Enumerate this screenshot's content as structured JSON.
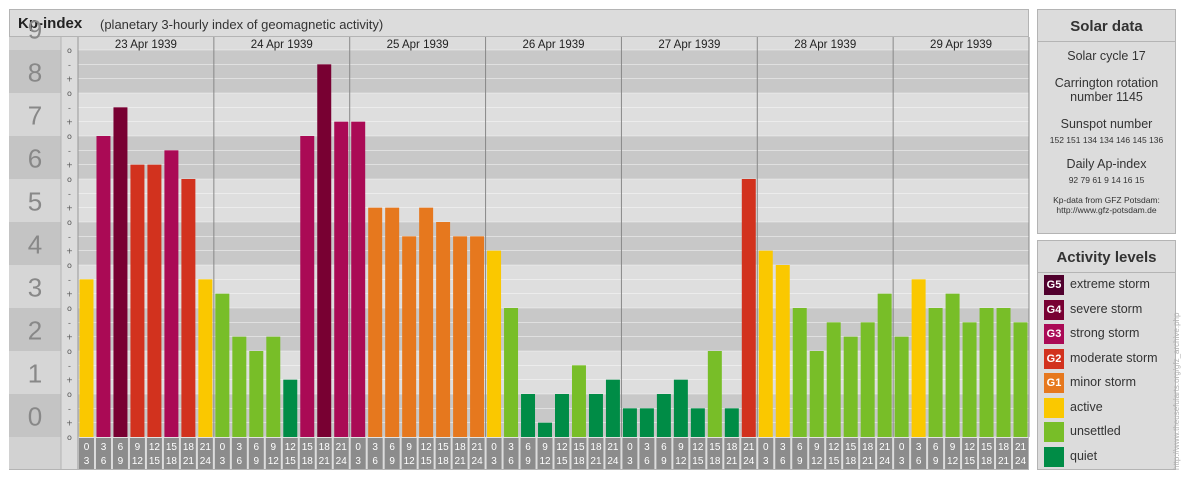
{
  "header": {
    "title": "Kp-index",
    "subtitle": "(planetary 3-hourly index of geomagnetic activity)"
  },
  "chart_data": {
    "type": "bar",
    "title": "Kp-index",
    "subtitle": "(planetary 3-hourly index of geomagnetic activity)",
    "ylim": [
      0,
      9
    ],
    "y_ticks": [
      "0",
      "1",
      "2",
      "3",
      "4",
      "5",
      "6",
      "7",
      "8",
      "9"
    ],
    "minor_ticks": [
      "o",
      "+",
      "-"
    ],
    "days": [
      "23 Apr 1939",
      "24 Apr 1939",
      "25 Apr 1939",
      "26 Apr 1939",
      "27 Apr 1939",
      "28 Apr 1939",
      "29 Apr 1939"
    ],
    "interval_start": [
      "0",
      "3",
      "6",
      "9",
      "12",
      "15",
      "18",
      "21"
    ],
    "interval_end": [
      "3",
      "6",
      "9",
      "12",
      "15",
      "18",
      "21",
      "24"
    ],
    "values": [
      3.667,
      7.0,
      7.667,
      6.333,
      6.333,
      6.667,
      6.0,
      3.667,
      3.333,
      2.333,
      2.0,
      2.333,
      1.333,
      7.0,
      8.667,
      7.333,
      7.333,
      5.333,
      5.333,
      4.667,
      5.333,
      5.0,
      4.667,
      4.667,
      4.333,
      3.0,
      1.0,
      0.333,
      1.0,
      1.667,
      1.0,
      1.333,
      0.667,
      0.667,
      1.0,
      1.333,
      0.667,
      2.0,
      0.667,
      6.0,
      4.333,
      4.0,
      3.0,
      2.0,
      2.667,
      2.333,
      2.667,
      3.333,
      2.333,
      3.667,
      3.0,
      3.333,
      2.667,
      3.0,
      3.0,
      2.667
    ],
    "grid": true
  },
  "colors": {
    "quiet": "#008c46",
    "unsettled": "#78be28",
    "active": "#fac800",
    "G1": "#e6781e",
    "G2": "#d2321e",
    "G3": "#aa0a55",
    "G4": "#780032",
    "G5": "#50002d"
  },
  "solar": {
    "title": "Solar data",
    "cycle": "Solar cycle 17",
    "carrington_line1": "Carrington rotation",
    "carrington_line2": "number 1145",
    "sunspot_label": "Sunspot number",
    "sunspot_values": "152 151 134 134 146 145 136",
    "ap_label": "Daily Ap-index",
    "ap_values": "92 79 61 9 14 16 15",
    "source_line1": "Kp-data from GFZ Potsdam:",
    "source_line2": "http://www.gfz-potsdam.de"
  },
  "legend": {
    "title": "Activity levels",
    "items": [
      {
        "badge": "G5",
        "label": "extreme storm"
      },
      {
        "badge": "G4",
        "label": "severe storm"
      },
      {
        "badge": "G3",
        "label": "strong storm"
      },
      {
        "badge": "G2",
        "label": "moderate storm"
      },
      {
        "badge": "G1",
        "label": "minor storm"
      },
      {
        "badge": "",
        "label": "active"
      },
      {
        "badge": "",
        "label": "unsettled"
      },
      {
        "badge": "",
        "label": "quiet"
      }
    ]
  },
  "watermark": "http://www.theusefularts.org/gfz_archive.php"
}
